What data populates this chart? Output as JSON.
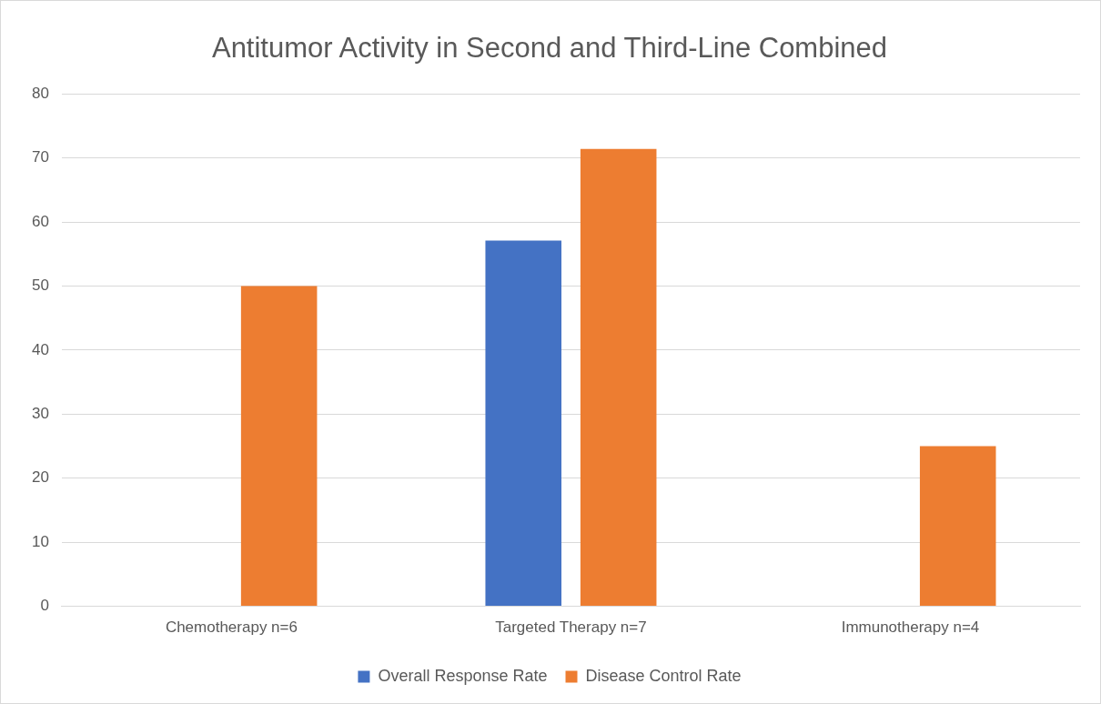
{
  "chart_data": {
    "type": "bar",
    "title": "Antitumor Activity in Second and Third-Line Combined",
    "categories": [
      "Chemotherapy n=6",
      "Targeted Therapy n=7",
      "Immunotherapy n=4"
    ],
    "series": [
      {
        "name": "Overall Response Rate",
        "color": "#4472c4",
        "values": [
          0,
          57.1,
          0
        ]
      },
      {
        "name": "Disease Control Rate",
        "color": "#ed7d31",
        "values": [
          50,
          71.4,
          25
        ]
      }
    ],
    "ylim": [
      0,
      80
    ],
    "yticks": [
      0,
      10,
      20,
      30,
      40,
      50,
      60,
      70,
      80
    ],
    "grid": "y",
    "legend": "bottom"
  }
}
